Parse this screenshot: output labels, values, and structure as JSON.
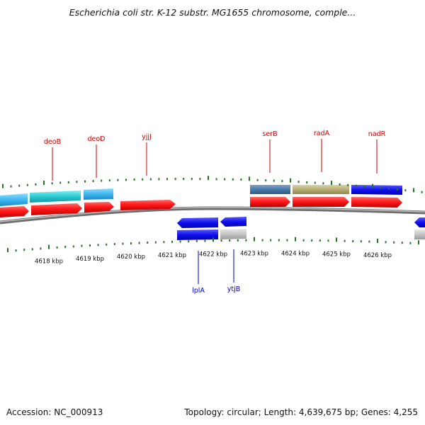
{
  "title": "Escherichia coli str. K-12 substr. MG1655 chromosome, comple...",
  "footer": {
    "accession": "Accession: NC_000913",
    "topology": "Topology: circular; Length: 4,639,675 bp; Genes: 4,255"
  },
  "colors": {
    "forward_label": "#cc0000",
    "reverse_label": "#0000bb",
    "tick": "#227722",
    "backbone": "#777777"
  },
  "kbp_labels": [
    {
      "kbp": 4618,
      "label": "4618 kbp"
    },
    {
      "kbp": 4619,
      "label": "4619 kbp"
    },
    {
      "kbp": 4620,
      "label": "4620 kbp"
    },
    {
      "kbp": 4621,
      "label": "4621 kbp"
    },
    {
      "kbp": 4622,
      "label": "4622 kbp"
    },
    {
      "kbp": 4623,
      "label": "4623 kbp"
    },
    {
      "kbp": 4624,
      "label": "4624 kbp"
    },
    {
      "kbp": 4625,
      "label": "4625 kbp"
    },
    {
      "kbp": 4626,
      "label": "4626 kbp"
    }
  ],
  "gene_labels": [
    {
      "name": "deoB",
      "strand": "forward"
    },
    {
      "name": "deoD",
      "strand": "forward"
    },
    {
      "name": "yjjJ",
      "strand": "forward"
    },
    {
      "name": "serB",
      "strand": "forward"
    },
    {
      "name": "radA",
      "strand": "forward"
    },
    {
      "name": "nadR",
      "strand": "forward"
    },
    {
      "name": "lplA",
      "strand": "reverse"
    },
    {
      "name": "ytjB",
      "strand": "reverse"
    }
  ]
}
